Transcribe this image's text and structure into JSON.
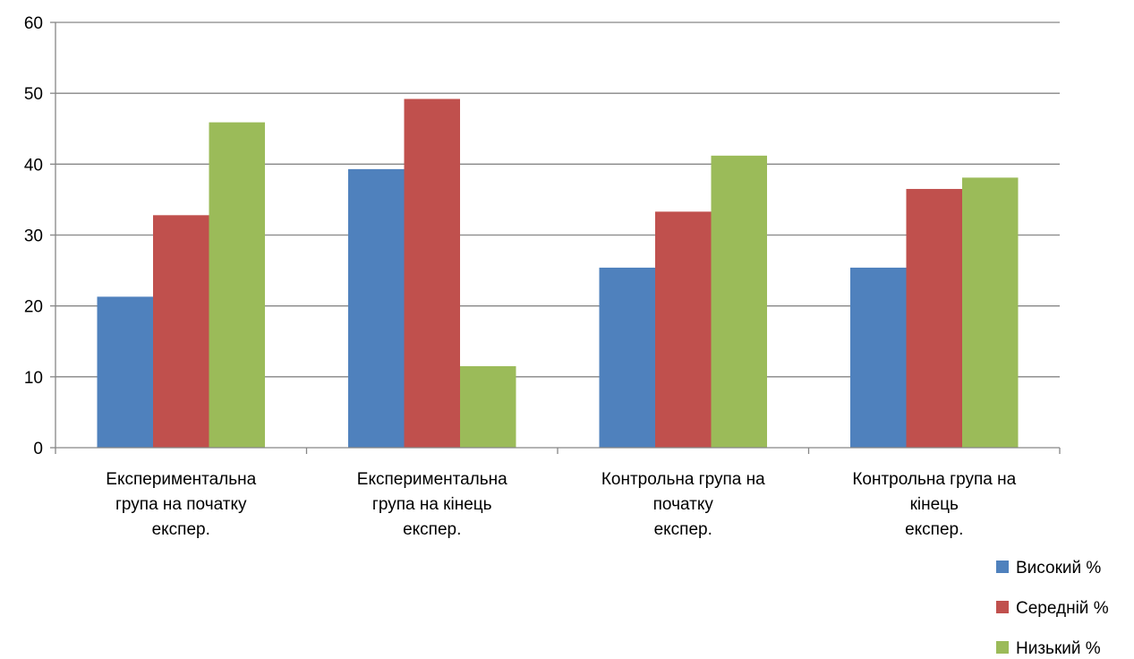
{
  "chart_data": {
    "type": "bar",
    "categories": [
      [
        "Експериментальна",
        "група на початку",
        "експер."
      ],
      [
        "Експериментальна",
        "група на кінець",
        "експер."
      ],
      [
        "Контрольна група на",
        "початку",
        "експер."
      ],
      [
        "Контрольна група на",
        "кінець",
        "експер."
      ]
    ],
    "series": [
      {
        "name": "Високий %",
        "color": "#4f81bd",
        "values": [
          21.3,
          39.3,
          25.4,
          25.4
        ]
      },
      {
        "name": "Середній %",
        "color": "#c0504d",
        "values": [
          32.8,
          49.2,
          33.3,
          36.5
        ]
      },
      {
        "name": "Низький %",
        "color": "#9bbb59",
        "values": [
          45.9,
          11.5,
          41.2,
          38.1
        ]
      }
    ],
    "ylim": [
      0,
      60
    ],
    "yticks": [
      0,
      10,
      20,
      30,
      40,
      50,
      60
    ],
    "grid": true,
    "legend_position": "bottom-right",
    "gridline_color": "#868686",
    "axis_color": "#868686"
  }
}
